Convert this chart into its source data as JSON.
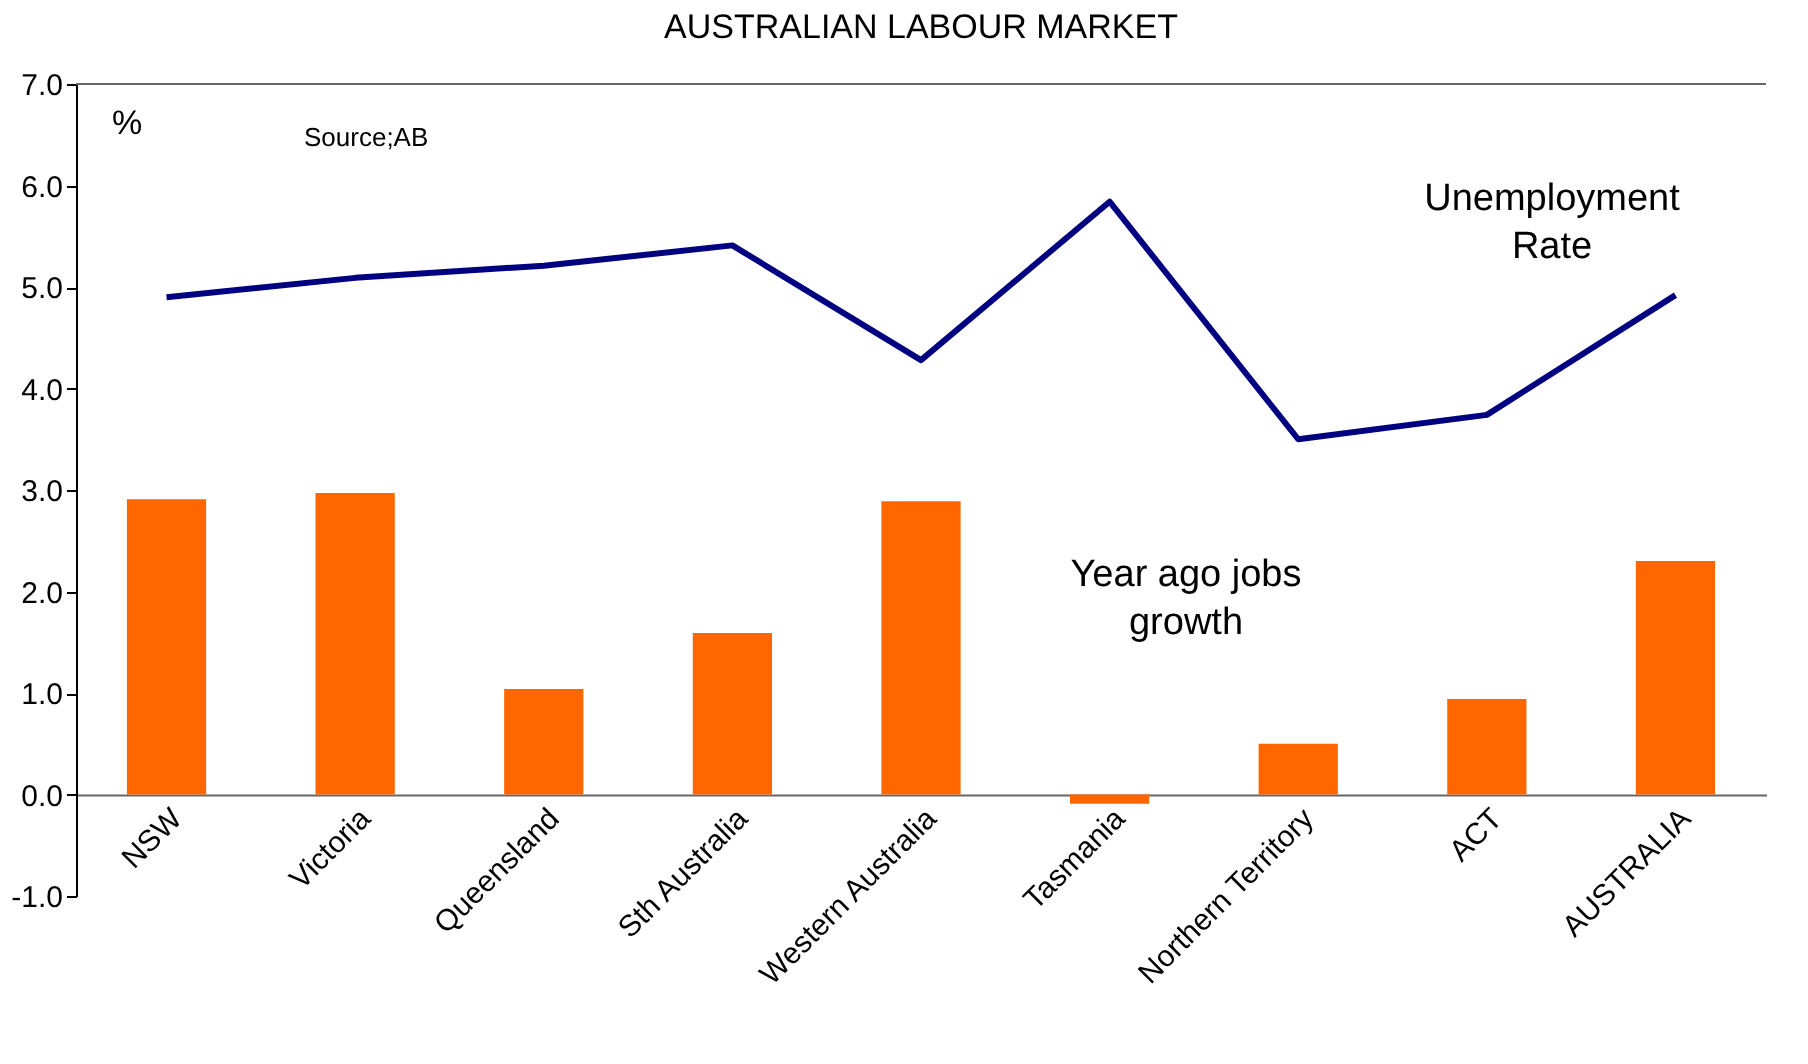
{
  "chart_data": {
    "type": "bar",
    "title": "AUSTRALIAN LABOUR MARKET",
    "ylabel": "%",
    "categories": [
      "NSW",
      "Victoria",
      "Queensland",
      "Sth Australia",
      "Western Australia",
      "Tasmania",
      "Northern Territory",
      "ACT",
      "AUSTRALIA"
    ],
    "series": [
      {
        "name": "Year ago jobs growth",
        "color": "#ff6600",
        "values": [
          2.91,
          2.97,
          1.04,
          1.59,
          2.89,
          -0.09,
          0.5,
          0.94,
          2.3
        ]
      },
      {
        "name": "Unemployment Rate",
        "type": "line",
        "color": "#000080",
        "values": [
          4.9,
          5.09,
          5.21,
          5.41,
          4.28,
          5.84,
          3.5,
          3.74,
          4.92
        ]
      }
    ],
    "ylim": [
      -1.0,
      7.0
    ],
    "yticks": [
      {
        "value": -1,
        "label": "-1.0"
      },
      {
        "value": 0,
        "label": "0.0"
      },
      {
        "value": 1,
        "label": "1.0"
      },
      {
        "value": 2,
        "label": "2.0"
      },
      {
        "value": 3,
        "label": "3.0"
      },
      {
        "value": 4,
        "label": "4.0"
      },
      {
        "value": 5,
        "label": "5.0"
      },
      {
        "value": 6,
        "label": "6.0"
      },
      {
        "value": 7,
        "label": "7.0"
      }
    ],
    "annotations": [
      "Source;AB"
    ],
    "grid": false
  }
}
